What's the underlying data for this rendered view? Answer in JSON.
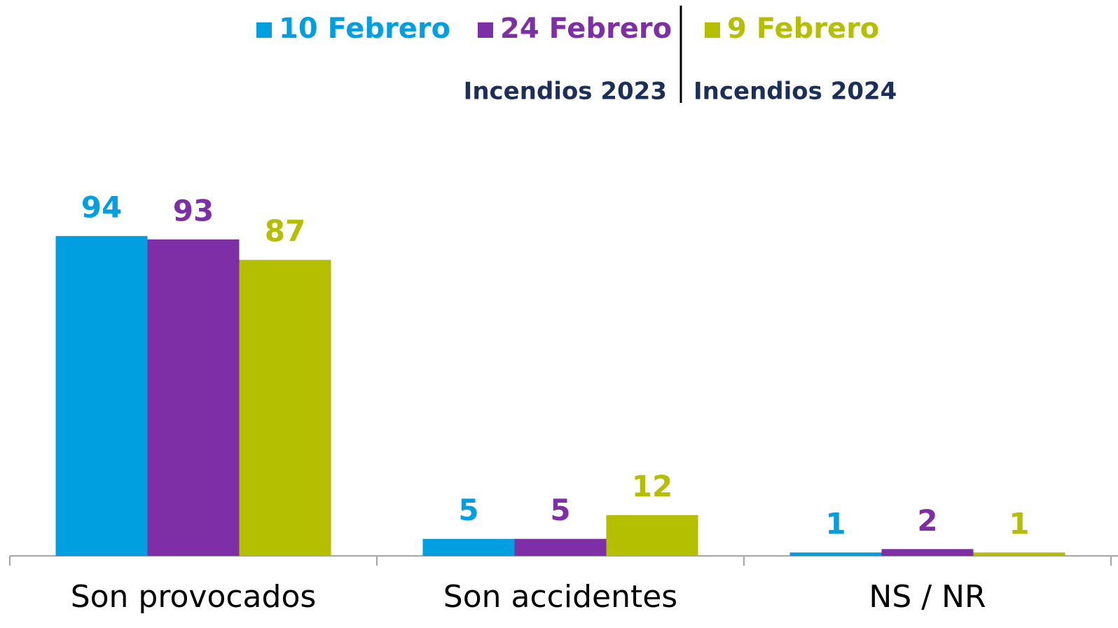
{
  "chart_data": {
    "type": "bar",
    "categories": [
      "Son provocados",
      "Son accidentes",
      "NS / NR"
    ],
    "series": [
      {
        "name": "10 Febrero",
        "color": "#009fe0",
        "values": [
          94,
          5,
          1
        ]
      },
      {
        "name": "24 Febrero",
        "color": "#7f2fa5",
        "values": [
          93,
          5,
          2
        ]
      },
      {
        "name": "9 Febrero",
        "color": "#b3bf00",
        "values": [
          87,
          12,
          1
        ]
      }
    ],
    "annotations": [
      "Incendios 2023",
      "Incendios 2024"
    ]
  }
}
